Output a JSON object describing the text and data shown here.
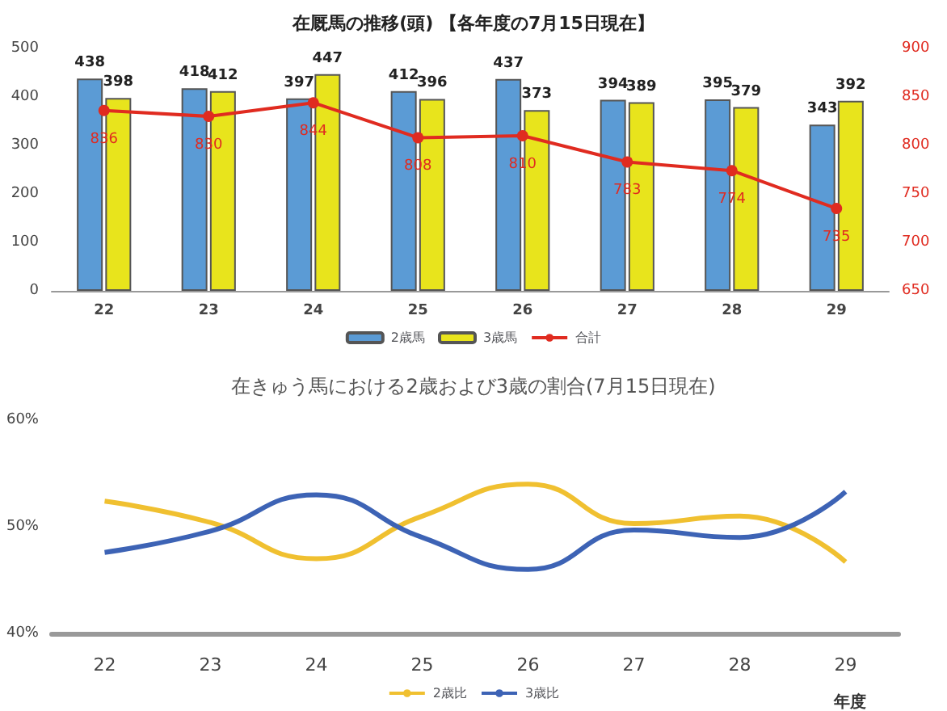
{
  "chart_data": [
    {
      "type": "bar",
      "title": "在厩馬の推移(頭) 【各年度の7月15日現在】",
      "categories": [
        "22",
        "23",
        "24",
        "25",
        "26",
        "27",
        "28",
        "29"
      ],
      "series": [
        {
          "name": "2歳馬",
          "color": "#5b9bd5",
          "values": [
            438,
            418,
            397,
            412,
            437,
            394,
            395,
            343
          ]
        },
        {
          "name": "3歳馬",
          "color": "#e8e41c",
          "values": [
            398,
            412,
            447,
            396,
            373,
            389,
            379,
            392
          ]
        },
        {
          "name": "合計",
          "type": "line",
          "axis": "y2",
          "color": "#e02b20",
          "values": [
            836,
            830,
            844,
            808,
            810,
            783,
            774,
            735
          ]
        }
      ],
      "ylim": [
        0,
        500
      ],
      "yticks": [
        0,
        100,
        200,
        300,
        400,
        500
      ],
      "y2lim": [
        650,
        900
      ],
      "y2ticks": [
        650,
        700,
        750,
        800,
        850,
        900
      ],
      "data_labels": true,
      "legend": "bottom",
      "grid": false,
      "marker": "circle"
    },
    {
      "type": "line",
      "title": "在きゅう馬における2歳および3歳の割合(7月15日現在)",
      "xlabel": "年度",
      "categories": [
        "22",
        "23",
        "24",
        "25",
        "26",
        "27",
        "28",
        "29"
      ],
      "series": [
        {
          "name": "2歳比",
          "color": "#f0c030",
          "values": [
            52.4,
            50.4,
            47.0,
            51.0,
            54.0,
            50.3,
            51.0,
            46.7
          ]
        },
        {
          "name": "3歳比",
          "color": "#3d63b5",
          "values": [
            47.6,
            49.6,
            53.0,
            49.0,
            46.0,
            49.7,
            49.0,
            53.3
          ]
        }
      ],
      "ylim": [
        40,
        60
      ],
      "yticks": [
        {
          "value": 40,
          "label": "40%"
        },
        {
          "value": 50,
          "label": "50%"
        },
        {
          "value": 60,
          "label": "60%"
        }
      ],
      "legend": "bottom",
      "grid": false,
      "marker": "none"
    }
  ]
}
